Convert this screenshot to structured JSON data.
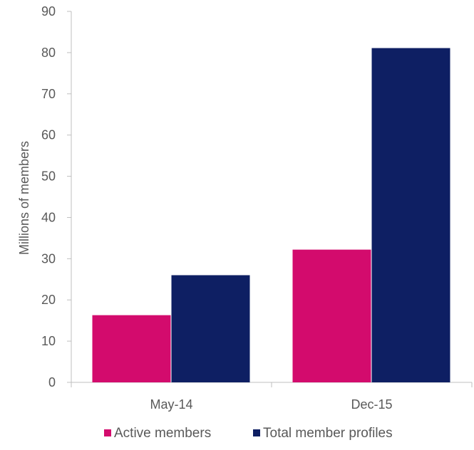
{
  "chart_data": {
    "type": "bar",
    "title": "",
    "xlabel": "",
    "ylabel": "Millions of members",
    "categories": [
      "May-14",
      "Dec-15"
    ],
    "series": [
      {
        "name": "Active members",
        "values": [
          16.3,
          32.2
        ],
        "color": "#d30b6d"
      },
      {
        "name": "Total member profiles",
        "values": [
          26.0,
          81.1
        ],
        "color": "#0e1f63"
      }
    ],
    "ylim": [
      0,
      90
    ],
    "yticks": [
      0,
      10,
      20,
      30,
      40,
      50,
      60,
      70,
      80,
      90
    ],
    "grid": false,
    "legend_position": "bottom"
  }
}
